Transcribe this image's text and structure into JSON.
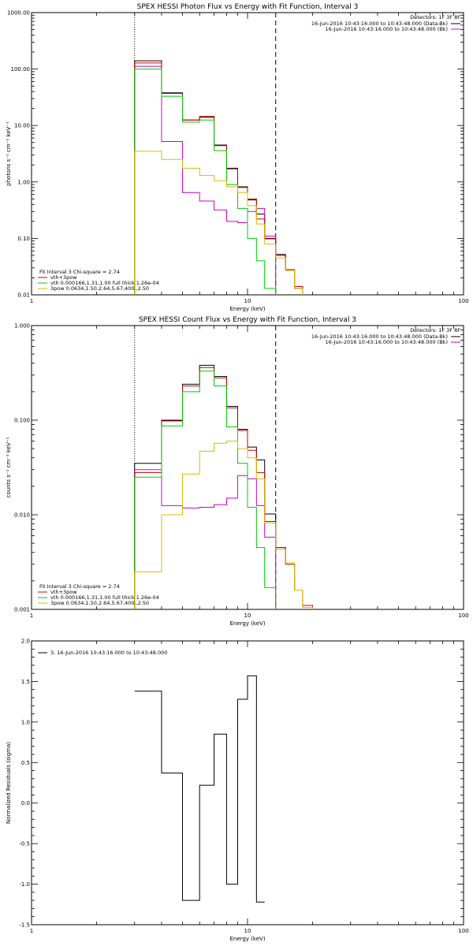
{
  "colors": {
    "data": "#000000",
    "background": "#cc00cc",
    "total_fit": "#cc0000",
    "vth": "#00cc00",
    "3pow": "#ddbb00"
  },
  "chart_data": [
    {
      "type": "line",
      "title": "SPEX HESSI Photon Flux vs Energy with Fit Function, Interval 3",
      "xlabel": "Energy (keV)",
      "ylabel": "photons s⁻¹ cm⁻² keV⁻¹",
      "xscale": "log",
      "yscale": "log",
      "xlim": [
        1,
        100
      ],
      "ylim": [
        0.01,
        1000
      ],
      "xticks": [
        1,
        10,
        100
      ],
      "xtick_labels": [
        "1",
        "10",
        "100"
      ],
      "yticks": [
        0.01,
        0.1,
        1,
        10,
        100,
        1000
      ],
      "ytick_labels": [
        "0.01",
        "0.10",
        "1.00",
        "10.00",
        "100.00",
        "1000.00"
      ],
      "vlines": [
        {
          "x": 3,
          "style": "dotted"
        },
        {
          "x": 13.5,
          "style": "dashed"
        }
      ],
      "legend_header": "Detectors: 1F 3F 8F",
      "legend_right": [
        {
          "label": "16-Jun-2016 10:43:16.000 to 10:43:48.000 (Data-Bk)",
          "color": "#000000"
        },
        {
          "label": "16-Jun-2016 10:43:16.000 to 10:43:48.000 (Bk)",
          "color": "#cc00cc"
        }
      ],
      "legend_left": [
        {
          "label": "Fit Interval 3   Chi-square = 2.74",
          "color": null
        },
        {
          "label": "vth+3pow",
          "color": "#cc0000"
        },
        {
          "label": "vth 0.000166,1.31,1.00  full thick 1.26e-04",
          "color": "#00cc00"
        },
        {
          "label": "3pow 0.0634,1.50,2.64,5.67,400.,2.50",
          "color": "#ddbb00"
        }
      ],
      "bin_edges": [
        3,
        4,
        5,
        6,
        7,
        8,
        9,
        10,
        11,
        12,
        13.5,
        15,
        16.5,
        18
      ],
      "series": [
        {
          "name": "16-Jun-2016 10:43:16.000 to 10:43:48.000 (Data-Bk)",
          "color": "#000000",
          "values": [
            140,
            38,
            12.5,
            14,
            4.5,
            1.75,
            0.82,
            0.48,
            0.27,
            0.1,
            0.052,
            0.028,
            0.013
          ]
        },
        {
          "name": "16-Jun-2016 10:43:16.000 to 10:43:48.000 (Bk)",
          "color": "#cc00cc",
          "values": [
            112,
            5.2,
            0.65,
            0.46,
            0.32,
            0.2,
            0.19,
            0.3,
            0.34,
            0.11,
            null,
            null,
            null
          ]
        },
        {
          "name": "vth+3pow",
          "color": "#cc0000",
          "values": [
            128,
            37,
            12.5,
            14.5,
            4.4,
            1.7,
            0.8,
            0.5,
            0.22,
            0.098,
            0.05,
            0.028,
            0.014
          ]
        },
        {
          "name": "vth 0.000166,1.31,1.00  full thick 1.26e-04",
          "color": "#00cc00",
          "values": [
            100,
            33,
            11.5,
            12.5,
            3.6,
            0.9,
            0.34,
            0.1,
            0.04,
            0.013,
            null,
            null,
            null
          ]
        },
        {
          "name": "3pow 0.0634,1.50,2.64,5.67,400.,2.50",
          "color": "#ddbb00",
          "values": [
            3.5,
            2.5,
            1.75,
            1.3,
            1.05,
            0.82,
            0.65,
            0.38,
            0.18,
            0.08,
            0.045,
            0.027,
            0.013
          ]
        }
      ]
    },
    {
      "type": "line",
      "title": "SPEX HESSI Count Flux vs Energy with Fit Function, Interval 3",
      "xlabel": "Energy (keV)",
      "ylabel": "counts s⁻¹ cm⁻² keV⁻¹",
      "xscale": "log",
      "yscale": "log",
      "xlim": [
        1,
        100
      ],
      "ylim": [
        0.001,
        1
      ],
      "xticks": [
        1,
        10,
        100
      ],
      "xtick_labels": [
        "1",
        "10",
        "100"
      ],
      "yticks": [
        0.001,
        0.01,
        0.1,
        1
      ],
      "ytick_labels": [
        "0.001",
        "0.010",
        "0.100",
        "1.000"
      ],
      "vlines": [
        {
          "x": 3,
          "style": "dotted"
        },
        {
          "x": 13.5,
          "style": "dashed"
        }
      ],
      "legend_header": "Detectors: 1F 3F 8F",
      "legend_right": [
        {
          "label": "16-Jun-2016 10:43:16.000 to 10:43:48.000 (Data-Bk)",
          "color": "#000000"
        },
        {
          "label": "16-Jun-2016 10:43:16.000 to 10:43:48.000 (Bk)",
          "color": "#cc00cc"
        }
      ],
      "legend_left": [
        {
          "label": "Fit Interval 3   Chi-square = 2.74",
          "color": null
        },
        {
          "label": "vth+3pow",
          "color": "#cc0000"
        },
        {
          "label": "vth 0.000166,1.31,1.00  full thick 1.26e-04",
          "color": "#00cc00"
        },
        {
          "label": "3pow 0.0634,1.50,2.64,5.67,400.,2.50",
          "color": "#ddbb00"
        }
      ],
      "bin_edges": [
        3,
        4,
        5,
        6,
        7,
        8,
        9,
        10,
        11,
        12,
        13.5,
        15,
        16.5,
        18,
        20
      ],
      "series": [
        {
          "name": "16-Jun-2016 10:43:16.000 to 10:43:48.000 (Data-Bk)",
          "color": "#000000",
          "values": [
            0.035,
            0.1,
            0.24,
            0.38,
            0.29,
            0.14,
            0.08,
            0.052,
            0.038,
            0.0102,
            0.0045,
            0.0031,
            0.0016,
            0.00105
          ]
        },
        {
          "name": "16-Jun-2016 10:43:16.000 to 10:43:48.000 (Bk)",
          "color": "#cc00cc",
          "values": [
            0.03,
            0.0125,
            0.0118,
            0.012,
            0.0128,
            0.015,
            0.026,
            0.024,
            0.0125,
            0.0058,
            null,
            null,
            null,
            null
          ]
        },
        {
          "name": "vth+3pow",
          "color": "#cc0000",
          "values": [
            0.028,
            0.098,
            0.23,
            0.36,
            0.28,
            0.135,
            0.078,
            0.048,
            0.028,
            0.0085,
            0.0045,
            0.003,
            0.0016,
            0.0011
          ]
        },
        {
          "name": "vth 0.000166,1.31,1.00  full thick 1.26e-04",
          "color": "#00cc00",
          "values": [
            0.025,
            0.087,
            0.2,
            0.33,
            0.23,
            0.085,
            0.035,
            0.012,
            0.0045,
            0.0017,
            null,
            null,
            null,
            null
          ]
        },
        {
          "name": "3pow 0.0634,1.50,2.64,5.67,400.,2.50",
          "color": "#ddbb00",
          "values": [
            0.0025,
            0.01,
            0.027,
            0.047,
            0.057,
            0.06,
            0.05,
            0.04,
            0.024,
            0.0082,
            0.0043,
            0.0031,
            0.0016,
            0.00105
          ]
        }
      ]
    },
    {
      "type": "line",
      "title": "",
      "xlabel": "Energy (keV)",
      "ylabel": "Normalized Residuals (sigma)",
      "xscale": "log",
      "yscale": "linear",
      "xlim": [
        1,
        100
      ],
      "ylim": [
        -1.5,
        2.0
      ],
      "xticks": [
        1,
        10,
        100
      ],
      "xtick_labels": [
        "1",
        "10",
        "100"
      ],
      "yticks": [
        -1.5,
        -1.0,
        -0.5,
        0.0,
        0.5,
        1.0,
        1.5,
        2.0
      ],
      "ytick_labels": [
        "-1.5",
        "-1.0",
        "-0.5",
        "0.0",
        "0.5",
        "1.0",
        "1.5",
        "2.0"
      ],
      "legend_left": [
        {
          "label": "3, 16-Jun-2016 10:43:16.000 to 10:43:48.000",
          "color": "#000000"
        }
      ],
      "bin_edges": [
        3,
        4,
        5,
        6,
        7,
        8,
        9,
        10,
        11,
        12,
        13.5
      ],
      "series": [
        {
          "name": "3, 16-Jun-2016 10:43:16.000 to 10:43:48.000",
          "color": "#000000",
          "values": [
            1.38,
            0.37,
            -1.2,
            0.22,
            0.85,
            -1.0,
            1.28,
            1.57,
            -1.22,
            null
          ]
        }
      ]
    }
  ]
}
